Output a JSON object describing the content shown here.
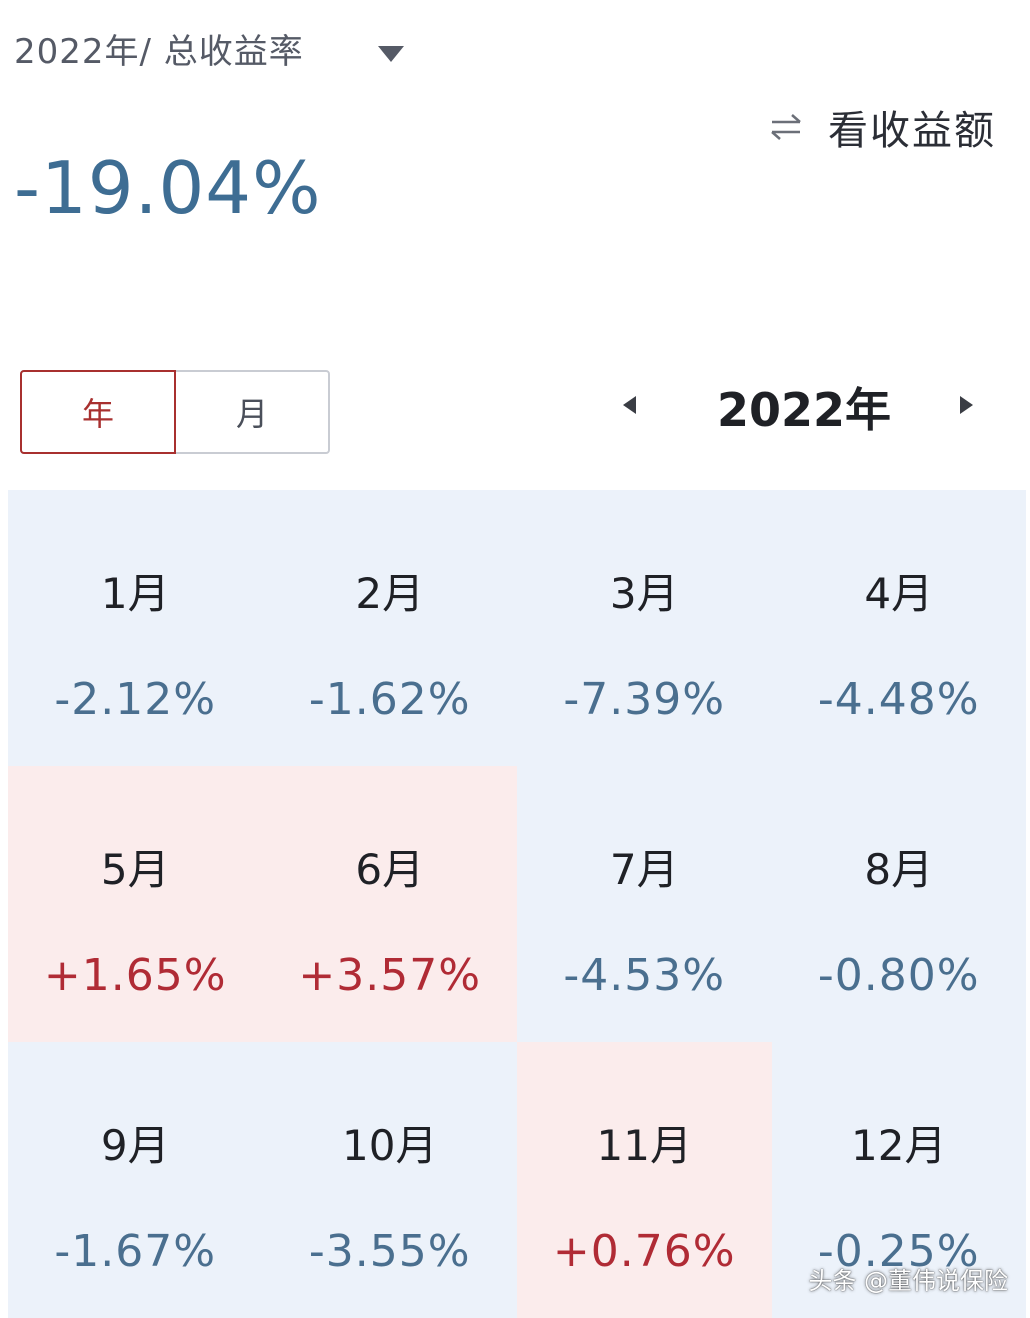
{
  "header": {
    "title": "2022年/ 总收益率",
    "dropdown_icon": "caret-down-icon",
    "toggle_icon": "swap-arrows-icon",
    "toggle_label": "看收益额"
  },
  "summary": {
    "total_return": "-19.04%"
  },
  "period_tabs": [
    {
      "label": "年",
      "active": true
    },
    {
      "label": "月",
      "active": false
    }
  ],
  "year_nav": {
    "prev_icon": "triangle-left-icon",
    "year_label": "2022年",
    "next_icon": "triangle-right-icon"
  },
  "months": [
    {
      "month": "1月",
      "rate": "-2.12%",
      "sign": "neg"
    },
    {
      "month": "2月",
      "rate": "-1.62%",
      "sign": "neg"
    },
    {
      "month": "3月",
      "rate": "-7.39%",
      "sign": "neg"
    },
    {
      "month": "4月",
      "rate": "-4.48%",
      "sign": "neg"
    },
    {
      "month": "5月",
      "rate": "+1.65%",
      "sign": "pos"
    },
    {
      "month": "6月",
      "rate": "+3.57%",
      "sign": "pos"
    },
    {
      "month": "7月",
      "rate": "-4.53%",
      "sign": "neg"
    },
    {
      "month": "8月",
      "rate": "-0.80%",
      "sign": "neg"
    },
    {
      "month": "9月",
      "rate": "-1.67%",
      "sign": "neg"
    },
    {
      "month": "10月",
      "rate": "-3.55%",
      "sign": "neg"
    },
    {
      "month": "11月",
      "rate": "+0.76%",
      "sign": "pos"
    },
    {
      "month": "12月",
      "rate": "-0.25%",
      "sign": "neg"
    }
  ],
  "colors": {
    "negative": "#4a6f8f",
    "positive": "#b02b35",
    "negative_bg": "#ecf2fa",
    "positive_bg": "#fbecec",
    "accent": "#a8302f"
  },
  "watermark": "头条 @董伟说保险"
}
